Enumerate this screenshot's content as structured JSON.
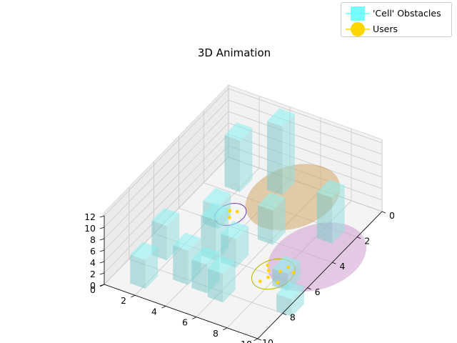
{
  "chart_data": {
    "type": "3d-bar",
    "title": "3D Animation",
    "axes": {
      "x": {
        "range": [
          0,
          10
        ],
        "ticks": [
          "0",
          "2",
          "4",
          "6",
          "8",
          "10"
        ]
      },
      "y": {
        "range": [
          0,
          10
        ],
        "ticks": [
          "0",
          "2",
          "4",
          "6",
          "8",
          "10"
        ]
      },
      "z": {
        "range": [
          0,
          12
        ],
        "ticks": [
          "0",
          "2",
          "4",
          "6",
          "8",
          "10",
          "12"
        ]
      }
    },
    "grid": true,
    "legend_position": "top-right",
    "legend": [
      {
        "label": "'Cell' Obstacles",
        "color": "#66ffff",
        "marker": "square"
      },
      {
        "label": "Users",
        "color": "#ffd700",
        "marker": "circle"
      }
    ],
    "obstacles": [
      {
        "x": 3.4,
        "y": 0.1,
        "w": 1,
        "d": 1,
        "h": 12
      },
      {
        "x": 1.2,
        "y": 0.8,
        "w": 1,
        "d": 1,
        "h": 9
      },
      {
        "x": 1.9,
        "y": 3.4,
        "w": 1,
        "d": 1,
        "h": 4
      },
      {
        "x": 5.3,
        "y": 3.2,
        "w": 1,
        "d": 1,
        "h": 6
      },
      {
        "x": 0.9,
        "y": 6.3,
        "w": 1,
        "d": 1,
        "h": 6
      },
      {
        "x": 3.3,
        "y": 5.3,
        "w": 1,
        "d": 1,
        "h": 7
      },
      {
        "x": 4.6,
        "y": 5.3,
        "w": 1,
        "d": 1,
        "h": 5
      },
      {
        "x": 4.4,
        "y": 7.4,
        "w": 1,
        "d": 1,
        "h": 5
      },
      {
        "x": 5.6,
        "y": 7.6,
        "w": 1,
        "d": 1,
        "h": 5
      },
      {
        "x": 1.2,
        "y": 8.4,
        "w": 1,
        "d": 1,
        "h": 5
      },
      {
        "x": 8.1,
        "y": 1.9,
        "w": 1,
        "d": 1,
        "h": 8
      },
      {
        "x": 8.2,
        "y": 5.6,
        "w": 1,
        "d": 1,
        "h": 3
      },
      {
        "x": 9.6,
        "y": 7.0,
        "w": 1,
        "d": 1,
        "h": 3
      },
      {
        "x": 3.1,
        "y": 7.3,
        "w": 1,
        "d": 1,
        "h": 6
      }
    ],
    "coverage_zones": [
      {
        "cx": 5.0,
        "cy": 1.0,
        "r": 2.4,
        "color": "#d2a86a"
      },
      {
        "cx": 9.0,
        "cy": 4.0,
        "r": 2.5,
        "color": "#cf9fcf"
      }
    ],
    "base_station_rings": [
      {
        "cx": 2.8,
        "cy": 3.3,
        "r": 0.8,
        "color": "#6f3cb0"
      },
      {
        "cx": 7.7,
        "cy": 5.9,
        "r": 1.1,
        "color": "#b3b300"
      }
    ],
    "users": [
      {
        "x": 2.6,
        "y": 3.1
      },
      {
        "x": 2.9,
        "y": 3.5
      },
      {
        "x": 3.0,
        "y": 3.0
      },
      {
        "x": 7.0,
        "y": 5.5
      },
      {
        "x": 7.3,
        "y": 5.8
      },
      {
        "x": 7.6,
        "y": 6.2
      },
      {
        "x": 7.9,
        "y": 5.6
      },
      {
        "x": 8.1,
        "y": 5.2
      },
      {
        "x": 8.3,
        "y": 6.3
      },
      {
        "x": 7.4,
        "y": 6.6
      },
      {
        "x": 8.6,
        "y": 5.4
      }
    ]
  }
}
